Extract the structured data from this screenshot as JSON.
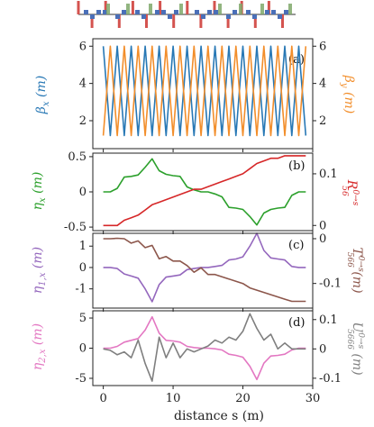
{
  "lattice_sketch": {
    "element_colors": {
      "quad": "#d4534f",
      "bend": "#4a6fb8",
      "sext": "#7fa86a"
    }
  },
  "chart_data": [
    {
      "panel_label": "(a)",
      "type": "line",
      "xlim": [
        -1.5,
        30
      ],
      "ylim": [
        0.5,
        6.4
      ],
      "yticks": [
        2,
        4,
        6
      ],
      "y2lim": [
        0.5,
        6.4
      ],
      "y2ticks": [
        2,
        4,
        6
      ],
      "ylabel": "β_x (m)",
      "y2label": "β_y (m)",
      "series": [
        {
          "axis": "left",
          "color": "#2878b5",
          "x": [
            0,
            1,
            2,
            3,
            4,
            5,
            6,
            7,
            8,
            9,
            10,
            11,
            12,
            13,
            14,
            15,
            16,
            17,
            18,
            19,
            20,
            21,
            22,
            23,
            24,
            25,
            26,
            27,
            28,
            29
          ],
          "y": [
            6.0,
            1.2,
            6.0,
            1.2,
            6.0,
            1.2,
            6.0,
            1.2,
            6.0,
            1.2,
            6.0,
            1.2,
            6.0,
            1.2,
            6.0,
            1.2,
            6.0,
            1.2,
            6.0,
            1.2,
            6.0,
            1.2,
            6.0,
            1.2,
            6.0,
            1.2,
            6.0,
            1.2,
            6.0,
            1.2
          ]
        },
        {
          "axis": "right",
          "color": "#f28e2b",
          "x": [
            0,
            1,
            2,
            3,
            4,
            5,
            6,
            7,
            8,
            9,
            10,
            11,
            12,
            13,
            14,
            15,
            16,
            17,
            18,
            19,
            20,
            21,
            22,
            23,
            24,
            25,
            26,
            27,
            28,
            29
          ],
          "y": [
            1.2,
            6.0,
            1.2,
            6.0,
            1.2,
            6.0,
            1.2,
            6.0,
            1.2,
            6.0,
            1.2,
            6.0,
            1.2,
            6.0,
            1.2,
            6.0,
            1.2,
            6.0,
            1.2,
            6.0,
            1.2,
            6.0,
            1.2,
            6.0,
            1.2,
            6.0,
            1.2,
            6.0,
            1.2,
            6.0
          ]
        }
      ]
    },
    {
      "panel_label": "(b)",
      "type": "line",
      "xlim": [
        -1.5,
        30
      ],
      "ylim": [
        -0.55,
        0.55
      ],
      "yticks": [
        -0.5,
        0.0,
        0.5
      ],
      "y2lim": [
        -0.01,
        0.14
      ],
      "y2ticks": [
        0,
        0.1
      ],
      "ylabel": "η_x (m)",
      "y2label": "R_56^{0→s}",
      "series": [
        {
          "axis": "left",
          "color": "#2ca02c",
          "x": [
            0,
            1,
            2,
            3,
            4,
            5,
            6,
            7,
            8,
            9,
            10,
            11,
            12,
            13,
            14,
            15,
            16,
            17,
            18,
            19,
            20,
            21,
            22,
            23,
            24,
            25,
            26,
            27,
            28,
            29
          ],
          "y": [
            0.0,
            0.0,
            0.05,
            0.21,
            0.22,
            0.24,
            0.35,
            0.47,
            0.3,
            0.25,
            0.23,
            0.22,
            0.07,
            0.03,
            0.0,
            0.0,
            -0.03,
            -0.07,
            -0.22,
            -0.23,
            -0.25,
            -0.35,
            -0.47,
            -0.3,
            -0.25,
            -0.23,
            -0.22,
            -0.05,
            0.0,
            0.0
          ]
        },
        {
          "axis": "right",
          "color": "#d62728",
          "x": [
            0,
            1,
            2,
            3,
            4,
            5,
            6,
            7,
            8,
            9,
            10,
            11,
            12,
            13,
            14,
            15,
            16,
            17,
            18,
            19,
            20,
            21,
            22,
            23,
            24,
            25,
            26,
            27,
            28,
            29
          ],
          "y": [
            0.0,
            0.0,
            0.0,
            0.01,
            0.015,
            0.02,
            0.03,
            0.04,
            0.045,
            0.05,
            0.055,
            0.06,
            0.065,
            0.07,
            0.07,
            0.075,
            0.08,
            0.085,
            0.09,
            0.095,
            0.1,
            0.11,
            0.12,
            0.125,
            0.13,
            0.13,
            0.135,
            0.135,
            0.135,
            0.135
          ]
        }
      ]
    },
    {
      "panel_label": "(c)",
      "type": "line",
      "xlim": [
        -1.5,
        30
      ],
      "ylim": [
        -1.9,
        1.6
      ],
      "yticks": [
        -1,
        0,
        1
      ],
      "y2lim": [
        -0.155,
        0.012
      ],
      "y2ticks": [
        -0.1,
        0.0
      ],
      "ylabel": "η_{1,x} (m)",
      "y2label": "T_566^{0→s} (m)",
      "series": [
        {
          "axis": "left",
          "color": "#9467bd",
          "x": [
            0,
            1,
            2,
            3,
            4,
            5,
            6,
            7,
            8,
            9,
            10,
            11,
            12,
            13,
            14,
            15,
            16,
            17,
            18,
            19,
            20,
            21,
            22,
            23,
            24,
            25,
            26,
            27,
            28,
            29
          ],
          "y": [
            0.0,
            0.0,
            -0.05,
            -0.3,
            -0.4,
            -0.5,
            -1.0,
            -1.6,
            -0.8,
            -0.45,
            -0.4,
            -0.35,
            -0.1,
            -0.05,
            0.0,
            0.0,
            0.05,
            0.1,
            0.35,
            0.4,
            0.5,
            1.0,
            1.6,
            0.8,
            0.45,
            0.4,
            0.35,
            0.05,
            0.0,
            0.0
          ]
        },
        {
          "axis": "right",
          "color": "#8c564b",
          "x": [
            0,
            1,
            2,
            3,
            4,
            5,
            6,
            7,
            8,
            9,
            10,
            11,
            12,
            13,
            14,
            15,
            16,
            17,
            18,
            19,
            20,
            21,
            22,
            23,
            24,
            25,
            26,
            27,
            28,
            29
          ],
          "y": [
            0.0,
            0.0,
            0.001,
            0.0,
            -0.01,
            -0.005,
            -0.02,
            -0.015,
            -0.045,
            -0.04,
            -0.05,
            -0.05,
            -0.06,
            -0.075,
            -0.065,
            -0.08,
            -0.08,
            -0.085,
            -0.09,
            -0.095,
            -0.1,
            -0.11,
            -0.115,
            -0.12,
            -0.125,
            -0.13,
            -0.135,
            -0.14,
            -0.14,
            -0.14
          ]
        }
      ]
    },
    {
      "panel_label": "(d)",
      "type": "line",
      "xlim": [
        -1.5,
        30
      ],
      "xticks": [
        0,
        10,
        20,
        30
      ],
      "xlabel": "distance s (m)",
      "ylim": [
        -6.2,
        6.2
      ],
      "yticks": [
        -5,
        0,
        5
      ],
      "y2lim": [
        -0.125,
        0.13
      ],
      "y2ticks": [
        -0.1,
        0.0,
        0.1
      ],
      "ylabel": "η_{2,x} (m)",
      "y2label": "U_5666^{0→s} (m)",
      "series": [
        {
          "axis": "left",
          "color": "#e377c2",
          "x": [
            0,
            1,
            2,
            3,
            4,
            5,
            6,
            7,
            8,
            9,
            10,
            11,
            12,
            13,
            14,
            15,
            16,
            17,
            18,
            19,
            20,
            21,
            22,
            23,
            24,
            25,
            26,
            27,
            28,
            29
          ],
          "y": [
            0.0,
            0.0,
            0.3,
            1.0,
            1.3,
            1.6,
            3.0,
            5.2,
            2.5,
            1.3,
            1.2,
            1.0,
            0.3,
            0.1,
            0.0,
            0.0,
            -0.1,
            -0.3,
            -1.0,
            -1.2,
            -1.5,
            -3.0,
            -5.2,
            -2.5,
            -1.3,
            -1.2,
            -1.0,
            -0.3,
            0.0,
            0.0
          ]
        },
        {
          "axis": "right",
          "color": "#7f7f7f",
          "x": [
            0,
            1,
            2,
            3,
            4,
            5,
            6,
            7,
            8,
            9,
            10,
            11,
            12,
            13,
            14,
            15,
            16,
            17,
            18,
            19,
            20,
            21,
            22,
            23,
            24,
            25,
            26,
            27,
            28,
            29
          ],
          "y": [
            0.0,
            -0.005,
            -0.02,
            -0.01,
            -0.03,
            0.03,
            -0.05,
            -0.11,
            0.04,
            -0.03,
            0.02,
            -0.03,
            0.0,
            -0.01,
            0.0,
            0.01,
            0.03,
            0.02,
            0.04,
            0.03,
            0.06,
            0.12,
            0.07,
            0.03,
            0.05,
            0.0,
            0.02,
            0.0,
            0.0,
            0.0
          ]
        }
      ]
    }
  ]
}
